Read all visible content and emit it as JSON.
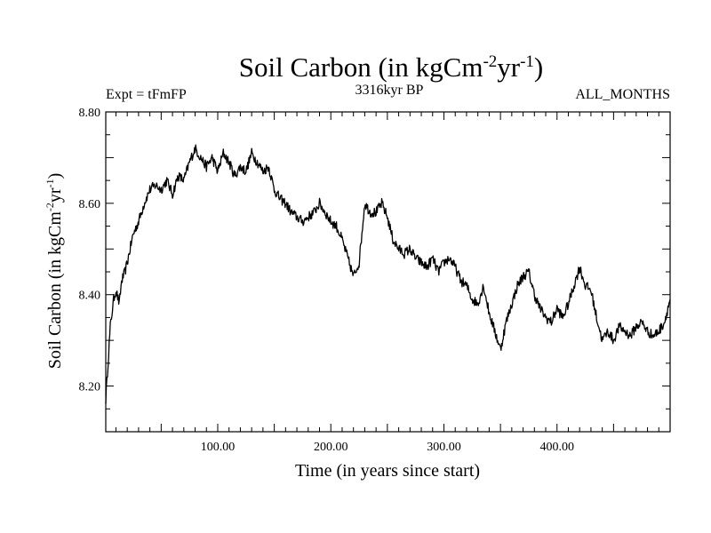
{
  "chart_data": {
    "type": "line",
    "title": {
      "main": "Soil Carbon (in kgCm",
      "sup1": "-2",
      "mid": "yr",
      "sup2": "-1",
      "end": ")"
    },
    "expt_label": "Expt = tFmFP",
    "subtitle": "3316kyr BP",
    "period_label": "ALL_MONTHS",
    "xlabel": "Time (in years since start)",
    "ylabel": {
      "main": "Soil Carbon (in kgCm",
      "sup1": "-2",
      "mid": "yr",
      "sup2": "-1",
      "end": ")"
    },
    "xlim": [
      1,
      500
    ],
    "ylim": [
      8.1,
      8.8
    ],
    "xticks": [
      {
        "value": 100,
        "label": "100.00"
      },
      {
        "value": 200,
        "label": "200.00"
      },
      {
        "value": 300,
        "label": "300.00"
      },
      {
        "value": 400,
        "label": "400.00"
      }
    ],
    "yticks": [
      {
        "value": 8.2,
        "label": "8.20"
      },
      {
        "value": 8.4,
        "label": "8.40"
      },
      {
        "value": 8.6,
        "label": "8.60"
      },
      {
        "value": 8.8,
        "label": "8.80"
      }
    ],
    "series": [
      {
        "name": "Soil Carbon",
        "color": "#000000",
        "x": [
          1,
          3,
          5,
          8,
          10,
          13,
          15,
          18,
          20,
          25,
          30,
          35,
          40,
          45,
          50,
          55,
          60,
          65,
          70,
          75,
          80,
          85,
          90,
          95,
          100,
          105,
          110,
          115,
          120,
          125,
          130,
          135,
          140,
          145,
          150,
          155,
          160,
          165,
          170,
          175,
          180,
          185,
          190,
          195,
          200,
          205,
          210,
          215,
          220,
          225,
          230,
          235,
          240,
          245,
          250,
          255,
          260,
          265,
          270,
          275,
          280,
          285,
          290,
          295,
          300,
          305,
          310,
          315,
          320,
          325,
          330,
          335,
          340,
          345,
          350,
          355,
          360,
          365,
          370,
          375,
          380,
          385,
          390,
          395,
          400,
          405,
          410,
          415,
          420,
          425,
          430,
          435,
          440,
          445,
          450,
          455,
          460,
          465,
          470,
          475,
          480,
          485,
          490,
          495,
          500
        ],
        "y": [
          8.17,
          8.25,
          8.33,
          8.39,
          8.41,
          8.38,
          8.43,
          8.45,
          8.47,
          8.53,
          8.56,
          8.6,
          8.63,
          8.64,
          8.63,
          8.65,
          8.62,
          8.66,
          8.65,
          8.69,
          8.72,
          8.7,
          8.68,
          8.7,
          8.67,
          8.71,
          8.69,
          8.66,
          8.68,
          8.67,
          8.71,
          8.69,
          8.67,
          8.68,
          8.63,
          8.61,
          8.6,
          8.58,
          8.57,
          8.56,
          8.57,
          8.58,
          8.6,
          8.58,
          8.56,
          8.55,
          8.52,
          8.48,
          8.44,
          8.47,
          8.6,
          8.58,
          8.58,
          8.6,
          8.57,
          8.52,
          8.5,
          8.49,
          8.5,
          8.48,
          8.47,
          8.46,
          8.48,
          8.45,
          8.47,
          8.48,
          8.46,
          8.43,
          8.42,
          8.39,
          8.38,
          8.42,
          8.36,
          8.32,
          8.28,
          8.34,
          8.38,
          8.42,
          8.44,
          8.45,
          8.4,
          8.37,
          8.35,
          8.34,
          8.37,
          8.35,
          8.38,
          8.42,
          8.46,
          8.42,
          8.41,
          8.35,
          8.3,
          8.32,
          8.3,
          8.33,
          8.32,
          8.31,
          8.33,
          8.34,
          8.32,
          8.31,
          8.32,
          8.34,
          8.39
        ]
      }
    ]
  }
}
